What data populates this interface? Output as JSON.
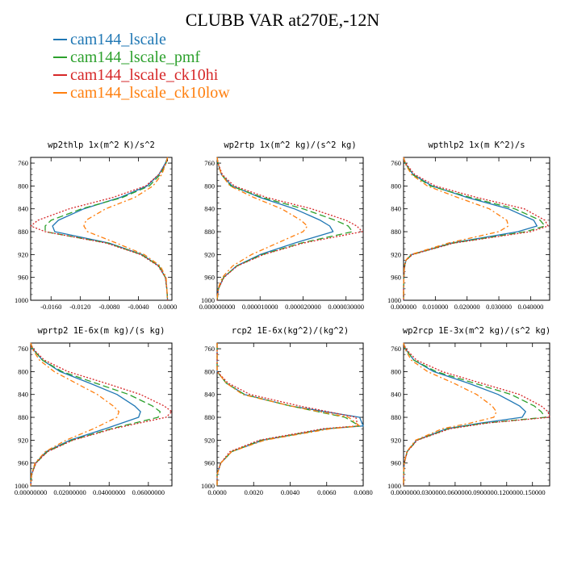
{
  "figure": {
    "title": "CLUBB VAR at270E,-12N",
    "legend": [
      {
        "label": "cam144_lscale",
        "color": "#1f77b4"
      },
      {
        "label": "cam144_lscale_pmf",
        "color": "#2ca02c"
      },
      {
        "label": "cam144_lscale_ck10hi",
        "color": "#d62728"
      },
      {
        "label": "cam144_lscale_ck10low",
        "color": "#ff7f0e"
      }
    ]
  },
  "chart_data": [
    {
      "type": "line",
      "title": "wp2thlp   1x(m^2 K)/s^2",
      "xlim": [
        -0.0188,
        0.0006
      ],
      "ylim": [
        1000,
        750
      ],
      "xticks": [
        -0.016,
        -0.012,
        -0.008,
        -0.004,
        0.0
      ],
      "xtick_labels": [
        "-0.0160",
        "-0.0120",
        "-0.0080",
        "-0.0040",
        "0.0000"
      ],
      "yticks": [
        760,
        800,
        840,
        880,
        920,
        960,
        1000
      ],
      "ytick_labels": [
        "760",
        "800",
        "840",
        "880",
        "920",
        "960",
        "1000"
      ],
      "y": [
        750,
        760,
        780,
        800,
        820,
        840,
        860,
        870,
        880,
        900,
        920,
        940,
        960,
        980,
        1000
      ],
      "series": [
        {
          "name": "cam144_lscale",
          "color": "#1f77b4",
          "dash": "solid",
          "values": [
            0.0,
            -0.0003,
            -0.0012,
            -0.0028,
            -0.0065,
            -0.0115,
            -0.015,
            -0.0158,
            -0.0155,
            -0.008,
            -0.0035,
            -0.0012,
            -0.0003,
            -0.0001,
            0.0
          ]
        },
        {
          "name": "cam144_lscale_pmf",
          "color": "#2ca02c",
          "dash": "8,4",
          "values": [
            0.0,
            -0.0002,
            -0.001,
            -0.0025,
            -0.0062,
            -0.0118,
            -0.016,
            -0.0168,
            -0.0168,
            -0.0082,
            -0.0036,
            -0.0012,
            -0.0003,
            -0.0001,
            0.0
          ]
        },
        {
          "name": "cam144_lscale_ck10hi",
          "color": "#d62728",
          "dash": "2,2",
          "values": [
            0.0,
            -0.0002,
            -0.0012,
            -0.003,
            -0.0075,
            -0.0135,
            -0.0178,
            -0.0188,
            -0.0168,
            -0.0084,
            -0.0037,
            -0.0013,
            -0.0003,
            -0.0001,
            0.0
          ]
        },
        {
          "name": "cam144_lscale_ck10low",
          "color": "#ff7f0e",
          "dash": "6,3,2,3",
          "values": [
            0.0,
            -0.0002,
            -0.0008,
            -0.002,
            -0.0045,
            -0.0085,
            -0.0112,
            -0.0115,
            -0.011,
            -0.007,
            -0.0032,
            -0.001,
            -0.0002,
            -0.0001,
            0.0
          ]
        }
      ]
    },
    {
      "type": "line",
      "title": "wp2rtp   1x(m^2 kg)/(s^2 kg)",
      "xlim": [
        0.0,
        3.4e-05
      ],
      "ylim": [
        1000,
        750
      ],
      "xticks": [
        0.0,
        1e-05,
        2e-05,
        3e-05
      ],
      "xtick_labels": [
        "0.000000000",
        "0.000010000",
        "0.000020000",
        "0.000030000"
      ],
      "yticks": [
        760,
        800,
        840,
        880,
        920,
        960,
        1000
      ],
      "ytick_labels": [
        "760",
        "800",
        "840",
        "880",
        "920",
        "960",
        "1000"
      ],
      "y": [
        750,
        760,
        780,
        800,
        820,
        840,
        860,
        870,
        880,
        900,
        920,
        940,
        960,
        980,
        1000
      ],
      "series": [
        {
          "name": "cam144_lscale",
          "color": "#1f77b4",
          "dash": "solid",
          "values": [
            0.0,
            2e-07,
            1e-06,
            3.5e-06,
            1e-05,
            1.8e-05,
            2.4e-05,
            2.62e-05,
            2.7e-05,
            1.8e-05,
            1e-05,
            4.5e-06,
            1.5e-06,
            3e-07,
            0.0
          ]
        },
        {
          "name": "cam144_lscale_pmf",
          "color": "#2ca02c",
          "dash": "8,4",
          "values": [
            0.0,
            2e-07,
            1e-06,
            3.2e-06,
            1.05e-05,
            2e-05,
            2.75e-05,
            3.05e-05,
            3.15e-05,
            1.95e-05,
            1.05e-05,
            4.6e-06,
            1.5e-06,
            3e-07,
            0.0
          ]
        },
        {
          "name": "cam144_lscale_ck10hi",
          "color": "#d62728",
          "dash": "2,2",
          "values": [
            0.0,
            2e-07,
            1.2e-06,
            4e-06,
            1.15e-05,
            2.2e-05,
            3e-05,
            3.25e-05,
            3.38e-05,
            2e-05,
            1.08e-05,
            4.7e-06,
            1.6e-06,
            3e-07,
            0.0
          ]
        },
        {
          "name": "cam144_lscale_ck10low",
          "color": "#ff7f0e",
          "dash": "6,3,2,3",
          "values": [
            0.0,
            2e-07,
            1e-06,
            3e-06,
            8.5e-06,
            1.5e-05,
            1.95e-05,
            2.1e-05,
            2e-05,
            1.4e-05,
            8e-06,
            3.6e-06,
            1.2e-06,
            2e-07,
            0.0
          ]
        }
      ]
    },
    {
      "type": "line",
      "title": "wpthlp2   1x(m K^2)/s",
      "xlim": [
        0.0,
        0.046
      ],
      "ylim": [
        1000,
        750
      ],
      "xticks": [
        0.0,
        0.01,
        0.02,
        0.03,
        0.04
      ],
      "xtick_labels": [
        "0.000000",
        "0.010000",
        "0.020000",
        "0.030000",
        "0.040000"
      ],
      "yticks": [
        760,
        800,
        840,
        880,
        920,
        960,
        1000
      ],
      "ytick_labels": [
        "760",
        "800",
        "840",
        "880",
        "920",
        "960",
        "1000"
      ],
      "y": [
        750,
        760,
        780,
        800,
        820,
        840,
        860,
        870,
        880,
        900,
        920,
        930,
        940,
        960,
        980,
        1000
      ],
      "series": [
        {
          "name": "cam144_lscale",
          "color": "#1f77b4",
          "dash": "solid",
          "values": [
            0.0,
            0.0005,
            0.003,
            0.009,
            0.02,
            0.033,
            0.041,
            0.042,
            0.036,
            0.015,
            0.0025,
            0.0008,
            0.0003,
            0.0001,
            0.0,
            0.0
          ]
        },
        {
          "name": "cam144_lscale_pmf",
          "color": "#2ca02c",
          "dash": "8,4",
          "values": [
            0.0,
            0.0005,
            0.0028,
            0.0085,
            0.021,
            0.035,
            0.043,
            0.0445,
            0.0385,
            0.0155,
            0.0027,
            0.0008,
            0.0003,
            0.0001,
            0.0,
            0.0
          ]
        },
        {
          "name": "cam144_lscale_ck10hi",
          "color": "#d62728",
          "dash": "2,2",
          "values": [
            0.0,
            0.0006,
            0.0035,
            0.01,
            0.023,
            0.038,
            0.0445,
            0.0455,
            0.04,
            0.0158,
            0.0028,
            0.0008,
            0.0003,
            0.0001,
            0.0,
            0.0
          ]
        },
        {
          "name": "cam144_lscale_ck10low",
          "color": "#ff7f0e",
          "dash": "6,3,2,3",
          "values": [
            0.0,
            0.0004,
            0.0025,
            0.0075,
            0.017,
            0.027,
            0.0325,
            0.033,
            0.03,
            0.014,
            0.0022,
            0.0007,
            0.0002,
            0.0001,
            0.0,
            0.0
          ]
        }
      ]
    },
    {
      "type": "line",
      "title": "wprtp2   1E-6x(m kg)/(s kg)",
      "xlim": [
        0.0,
        0.072
      ],
      "ylim": [
        1000,
        750
      ],
      "xticks": [
        0.0,
        0.02,
        0.04,
        0.06
      ],
      "xtick_labels": [
        "0.00000000",
        "0.02000000",
        "0.04000000",
        "0.06000000"
      ],
      "yticks": [
        760,
        800,
        840,
        880,
        920,
        960,
        1000
      ],
      "ytick_labels": [
        "760",
        "800",
        "840",
        "880",
        "920",
        "960",
        "1000"
      ],
      "y": [
        750,
        760,
        780,
        800,
        820,
        840,
        860,
        870,
        880,
        900,
        920,
        940,
        960,
        980,
        1000
      ],
      "series": [
        {
          "name": "cam144_lscale",
          "color": "#1f77b4",
          "dash": "solid",
          "values": [
            0.0,
            0.001,
            0.006,
            0.015,
            0.03,
            0.044,
            0.053,
            0.056,
            0.055,
            0.038,
            0.02,
            0.008,
            0.0025,
            0.0005,
            0.0
          ]
        },
        {
          "name": "cam144_lscale_pmf",
          "color": "#2ca02c",
          "dash": "8,4",
          "values": [
            0.0,
            0.001,
            0.006,
            0.016,
            0.033,
            0.05,
            0.062,
            0.066,
            0.065,
            0.041,
            0.021,
            0.0085,
            0.0026,
            0.0005,
            0.0
          ]
        },
        {
          "name": "cam144_lscale_ck10hi",
          "color": "#d62728",
          "dash": "2,2",
          "values": [
            0.0,
            0.0012,
            0.007,
            0.019,
            0.038,
            0.056,
            0.068,
            0.072,
            0.069,
            0.042,
            0.0215,
            0.0087,
            0.0027,
            0.0005,
            0.0
          ]
        },
        {
          "name": "cam144_lscale_ck10low",
          "color": "#ff7f0e",
          "dash": "6,3,2,3",
          "values": [
            0.0,
            0.0008,
            0.0045,
            0.012,
            0.023,
            0.034,
            0.042,
            0.045,
            0.044,
            0.032,
            0.018,
            0.0075,
            0.0022,
            0.0004,
            0.0
          ]
        }
      ]
    },
    {
      "type": "line",
      "title": "rcp2   1E-6x(kg^2)/(kg^2)",
      "xlim": [
        0.0,
        0.008
      ],
      "ylim": [
        1000,
        750
      ],
      "xticks": [
        0.0,
        0.002,
        0.004,
        0.006,
        0.008
      ],
      "xtick_labels": [
        "0.0000",
        "0.0020",
        "0.0040",
        "0.0060",
        "0.0080"
      ],
      "yticks": [
        760,
        800,
        840,
        880,
        920,
        960,
        1000
      ],
      "ytick_labels": [
        "760",
        "800",
        "840",
        "880",
        "920",
        "960",
        "1000"
      ],
      "y": [
        750,
        800,
        820,
        840,
        860,
        880,
        895,
        900,
        920,
        940,
        960,
        980,
        1000
      ],
      "series": [
        {
          "name": "cam144_lscale",
          "color": "#1f77b4",
          "dash": "solid",
          "values": [
            0.0,
            0.0,
            0.0005,
            0.0015,
            0.004,
            0.0078,
            0.008,
            0.006,
            0.0025,
            0.0008,
            0.0002,
            0.0,
            0.0
          ]
        },
        {
          "name": "cam144_lscale_pmf",
          "color": "#2ca02c",
          "dash": "8,4",
          "values": [
            0.0,
            0.0,
            0.0005,
            0.0015,
            0.004,
            0.007,
            0.0078,
            0.006,
            0.0024,
            0.0008,
            0.0002,
            0.0,
            0.0
          ]
        },
        {
          "name": "cam144_lscale_ck10hi",
          "color": "#d62728",
          "dash": "2,2",
          "values": [
            0.0,
            0.0,
            0.0006,
            0.0018,
            0.0045,
            0.0076,
            0.0077,
            0.0058,
            0.0023,
            0.0007,
            0.0002,
            0.0,
            0.0
          ]
        },
        {
          "name": "cam144_lscale_ck10low",
          "color": "#ff7f0e",
          "dash": "6,3,2,3",
          "values": [
            0.0,
            0.0,
            0.0005,
            0.0014,
            0.004,
            0.0072,
            0.0078,
            0.0062,
            0.0026,
            0.0008,
            0.0002,
            0.0,
            0.0
          ]
        }
      ]
    },
    {
      "type": "line",
      "title": "wp2rcp   1E-3x(m^2 kg)/(s^2 kg)",
      "xlim": [
        0.0,
        0.17
      ],
      "ylim": [
        1000,
        750
      ],
      "xticks": [
        0.0,
        0.03,
        0.06,
        0.09,
        0.12,
        0.15
      ],
      "xtick_labels": [
        "0.000000",
        "0.030000",
        "0.060000",
        "0.090000",
        "0.120000",
        "0.150000"
      ],
      "yticks": [
        760,
        800,
        840,
        880,
        920,
        960,
        1000
      ],
      "ytick_labels": [
        "760",
        "800",
        "840",
        "880",
        "920",
        "960",
        "1000"
      ],
      "y": [
        750,
        760,
        780,
        800,
        820,
        840,
        860,
        870,
        880,
        890,
        900,
        920,
        940,
        960,
        980,
        1000
      ],
      "series": [
        {
          "name": "cam144_lscale",
          "color": "#1f77b4",
          "dash": "solid",
          "values": [
            0.0,
            0.002,
            0.012,
            0.035,
            0.075,
            0.11,
            0.135,
            0.142,
            0.138,
            0.09,
            0.05,
            0.015,
            0.004,
            0.0008,
            0.0001,
            0.0
          ]
        },
        {
          "name": "cam144_lscale_pmf",
          "color": "#2ca02c",
          "dash": "8,4",
          "values": [
            0.0,
            0.002,
            0.012,
            0.038,
            0.082,
            0.125,
            0.152,
            0.16,
            0.165,
            0.095,
            0.052,
            0.0155,
            0.0042,
            0.0008,
            0.0001,
            0.0
          ]
        },
        {
          "name": "cam144_lscale_ck10hi",
          "color": "#d62728",
          "dash": "2,2",
          "values": [
            0.0,
            0.0025,
            0.015,
            0.045,
            0.09,
            0.135,
            0.16,
            0.168,
            0.17,
            0.098,
            0.054,
            0.016,
            0.0043,
            0.0008,
            0.0001,
            0.0
          ]
        },
        {
          "name": "cam144_lscale_ck10low",
          "color": "#ff7f0e",
          "dash": "6,3,2,3",
          "values": [
            0.0,
            0.0015,
            0.009,
            0.028,
            0.058,
            0.085,
            0.103,
            0.108,
            0.105,
            0.078,
            0.045,
            0.014,
            0.0038,
            0.0007,
            0.0001,
            0.0
          ]
        }
      ]
    }
  ]
}
